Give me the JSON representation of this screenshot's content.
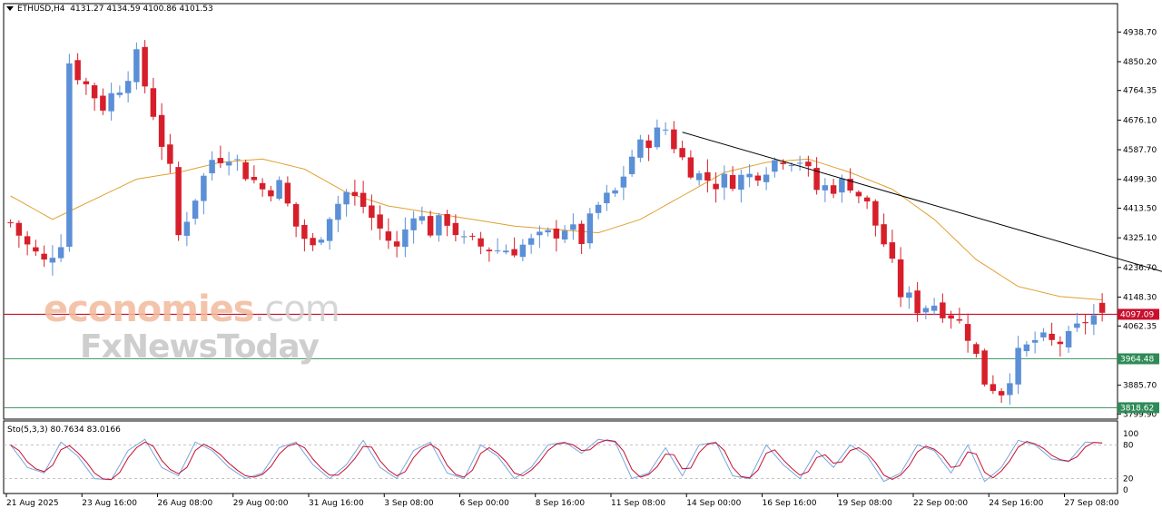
{
  "header": {
    "symbol": "ETHUSD,H4",
    "ohlc": "4131.27 4134.59 4100.86 4101.53"
  },
  "stochastic": {
    "label": "Sto(5,3,3) 80.7634 83.0166",
    "levels": [
      "100",
      "80",
      "20",
      "0"
    ]
  },
  "watermark": {
    "brand_main": "economies",
    "brand_domain": ".com",
    "brand_sub": "FxNewsToday"
  },
  "price_tags": [
    {
      "value": "4097.09",
      "color": "#c8102e"
    },
    {
      "value": "3964.48",
      "color": "#2e8b57"
    },
    {
      "value": "3818.62",
      "color": "#2e8b57"
    }
  ],
  "colors": {
    "bull": "#5b8fd6",
    "bear": "#d61f2a",
    "ma": "#e0a030",
    "stoch_main": "#7aa6e0",
    "stoch_signal": "#c8102e",
    "trendline": "#000000"
  },
  "chart_data": {
    "type": "candlestick",
    "symbol": "ETHUSD",
    "timeframe": "H4",
    "ylim": [
      3790,
      4980
    ],
    "y_ticks": [
      "4938.70",
      "4850.20",
      "4764.35",
      "4676.10",
      "4587.70",
      "4499.30",
      "4413.50",
      "4325.10",
      "4236.70",
      "4148.30",
      "4062.35",
      "3885.70",
      "3799.90"
    ],
    "x_labels": [
      "21 Aug 2025",
      "23 Aug 16:00",
      "26 Aug 08:00",
      "29 Aug 00:00",
      "31 Aug 16:00",
      "3 Sep 08:00",
      "6 Sep 00:00",
      "8 Sep 16:00",
      "11 Sep 08:00",
      "14 Sep 00:00",
      "16 Sep 16:00",
      "19 Sep 08:00",
      "22 Sep 00:00",
      "24 Sep 16:00",
      "27 Sep 08:00"
    ],
    "horizontal_lines": [
      4097.09,
      3964.48,
      3818.62
    ],
    "trendline": {
      "from": {
        "bar": 80,
        "price": 4640
      },
      "to": {
        "bar": 132,
        "price": 4300
      }
    },
    "close_path": [
      [
        0,
        4370
      ],
      [
        2,
        4300
      ],
      [
        4,
        4250
      ],
      [
        6,
        4320
      ],
      [
        7,
        4850
      ],
      [
        9,
        4780
      ],
      [
        11,
        4720
      ],
      [
        13,
        4780
      ],
      [
        15,
        4860
      ],
      [
        17,
        4700
      ],
      [
        19,
        4520
      ],
      [
        20,
        4330
      ],
      [
        22,
        4450
      ],
      [
        24,
        4560
      ],
      [
        26,
        4580
      ],
      [
        28,
        4520
      ],
      [
        30,
        4470
      ],
      [
        32,
        4480
      ],
      [
        34,
        4360
      ],
      [
        36,
        4290
      ],
      [
        38,
        4400
      ],
      [
        40,
        4460
      ],
      [
        42,
        4420
      ],
      [
        44,
        4350
      ],
      [
        46,
        4290
      ],
      [
        48,
        4410
      ],
      [
        50,
        4350
      ],
      [
        52,
        4380
      ],
      [
        54,
        4310
      ],
      [
        56,
        4300
      ],
      [
        58,
        4290
      ],
      [
        60,
        4295
      ],
      [
        62,
        4310
      ],
      [
        64,
        4330
      ],
      [
        66,
        4360
      ],
      [
        68,
        4320
      ],
      [
        70,
        4420
      ],
      [
        72,
        4460
      ],
      [
        74,
        4570
      ],
      [
        76,
        4620
      ],
      [
        78,
        4650
      ],
      [
        80,
        4560
      ],
      [
        82,
        4510
      ],
      [
        84,
        4490
      ],
      [
        86,
        4500
      ],
      [
        88,
        4510
      ],
      [
        90,
        4540
      ],
      [
        92,
        4570
      ],
      [
        94,
        4560
      ],
      [
        96,
        4470
      ],
      [
        98,
        4480
      ],
      [
        100,
        4490
      ],
      [
        102,
        4420
      ],
      [
        104,
        4310
      ],
      [
        106,
        4160
      ],
      [
        108,
        4120
      ],
      [
        110,
        4130
      ],
      [
        112,
        4100
      ],
      [
        114,
        4040
      ],
      [
        116,
        3900
      ],
      [
        118,
        3870
      ],
      [
        120,
        3970
      ],
      [
        122,
        4020
      ],
      [
        124,
        4010
      ],
      [
        126,
        4020
      ],
      [
        128,
        4080
      ],
      [
        130,
        4101.53
      ]
    ],
    "ma_path": [
      [
        0,
        4450
      ],
      [
        5,
        4380
      ],
      [
        10,
        4440
      ],
      [
        15,
        4500
      ],
      [
        20,
        4520
      ],
      [
        25,
        4550
      ],
      [
        30,
        4560
      ],
      [
        35,
        4530
      ],
      [
        40,
        4460
      ],
      [
        45,
        4420
      ],
      [
        50,
        4400
      ],
      [
        55,
        4380
      ],
      [
        60,
        4360
      ],
      [
        65,
        4350
      ],
      [
        70,
        4340
      ],
      [
        75,
        4380
      ],
      [
        80,
        4450
      ],
      [
        85,
        4520
      ],
      [
        90,
        4550
      ],
      [
        95,
        4560
      ],
      [
        100,
        4520
      ],
      [
        105,
        4470
      ],
      [
        110,
        4380
      ],
      [
        115,
        4260
      ],
      [
        120,
        4180
      ],
      [
        125,
        4150
      ],
      [
        130,
        4140
      ]
    ],
    "stoch_cycle": [
      [
        0,
        80
      ],
      [
        2,
        40
      ],
      [
        4,
        30
      ],
      [
        6,
        85
      ],
      [
        8,
        60
      ],
      [
        10,
        20
      ],
      [
        12,
        18
      ],
      [
        14,
        70
      ],
      [
        16,
        90
      ],
      [
        18,
        40
      ],
      [
        20,
        25
      ],
      [
        22,
        85
      ],
      [
        24,
        70
      ],
      [
        26,
        40
      ],
      [
        28,
        20
      ],
      [
        30,
        30
      ],
      [
        32,
        75
      ],
      [
        34,
        85
      ],
      [
        36,
        45
      ],
      [
        38,
        20
      ],
      [
        40,
        45
      ],
      [
        42,
        88
      ],
      [
        44,
        40
      ],
      [
        46,
        20
      ],
      [
        48,
        70
      ],
      [
        50,
        85
      ],
      [
        52,
        30
      ],
      [
        54,
        20
      ],
      [
        56,
        80
      ],
      [
        58,
        60
      ],
      [
        60,
        20
      ],
      [
        62,
        40
      ],
      [
        64,
        80
      ],
      [
        66,
        85
      ],
      [
        68,
        65
      ],
      [
        70,
        90
      ],
      [
        72,
        85
      ],
      [
        74,
        20
      ],
      [
        76,
        30
      ],
      [
        78,
        75
      ],
      [
        80,
        25
      ],
      [
        82,
        80
      ],
      [
        84,
        85
      ],
      [
        86,
        25
      ],
      [
        88,
        20
      ],
      [
        90,
        80
      ],
      [
        92,
        45
      ],
      [
        94,
        20
      ],
      [
        96,
        70
      ],
      [
        98,
        40
      ],
      [
        100,
        80
      ],
      [
        102,
        60
      ],
      [
        104,
        15
      ],
      [
        106,
        30
      ],
      [
        108,
        80
      ],
      [
        110,
        70
      ],
      [
        112,
        30
      ],
      [
        114,
        80
      ],
      [
        116,
        15
      ],
      [
        118,
        40
      ],
      [
        120,
        88
      ],
      [
        122,
        80
      ],
      [
        124,
        55
      ],
      [
        126,
        50
      ],
      [
        128,
        85
      ],
      [
        130,
        83
      ]
    ],
    "last_values": {
      "open": 4131.27,
      "high": 4134.59,
      "low": 4100.86,
      "close": 4101.53
    },
    "grid": false
  }
}
